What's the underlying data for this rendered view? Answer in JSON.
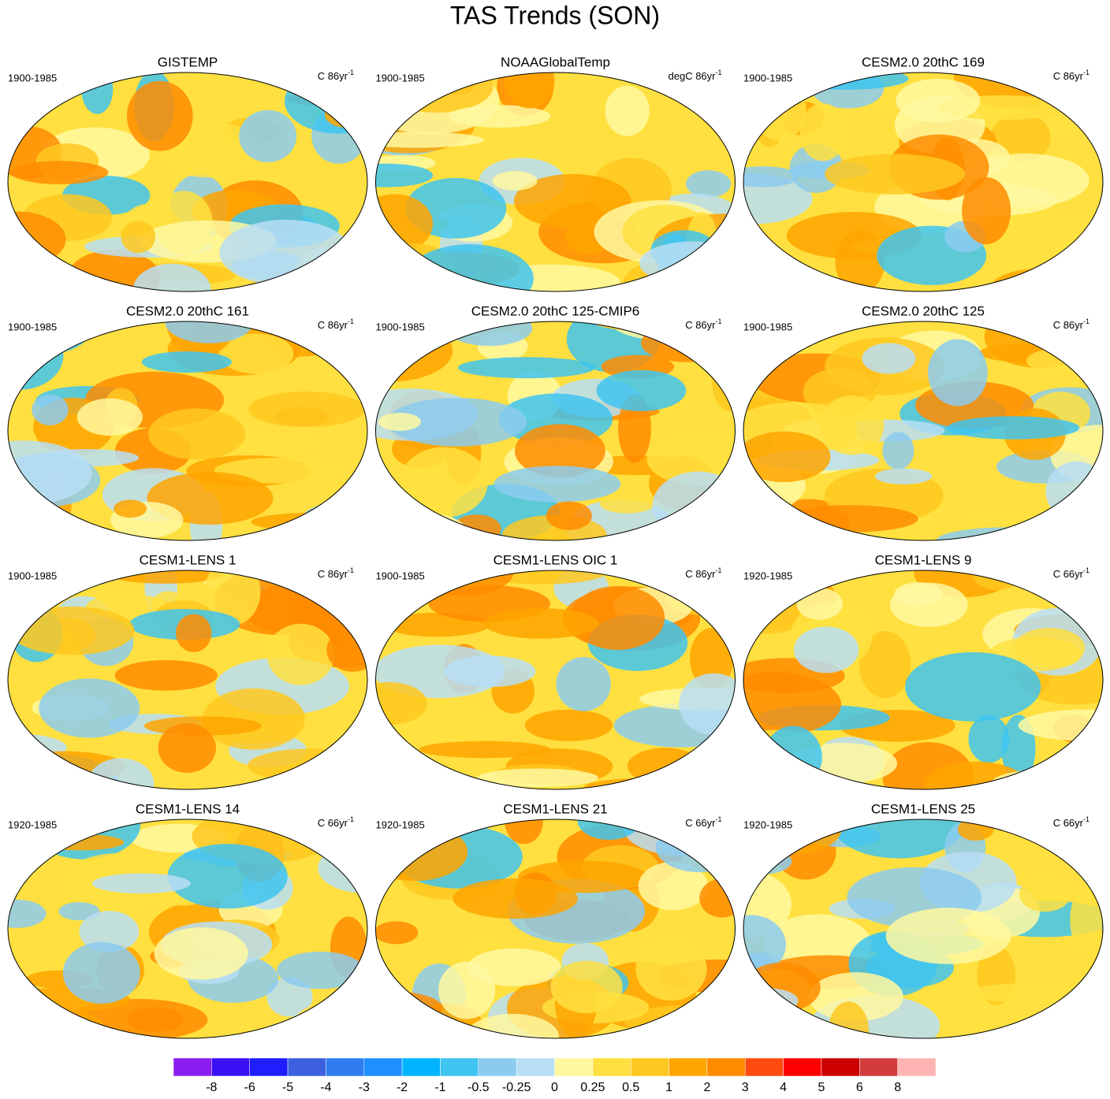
{
  "title": "TAS Trends (SON)",
  "panels": [
    {
      "title": "GISTEMP",
      "period": "1900-1985",
      "units": {
        "text": "C 86yr",
        "superscript": "-1"
      }
    },
    {
      "title": "NOAAGlobalTemp",
      "period": "1900-1985",
      "units": {
        "text": "degC 86yr",
        "superscript": "-1"
      }
    },
    {
      "title": "CESM2.0 20thC 169",
      "period": "1900-1985",
      "units": {
        "text": "C 86yr",
        "superscript": "-1"
      }
    },
    {
      "title": "CESM2.0 20thC 161",
      "period": "1900-1985",
      "units": {
        "text": "C 86yr",
        "superscript": "-1"
      }
    },
    {
      "title": "CESM2.0 20thC 125-CMIP6",
      "period": "1900-1985",
      "units": {
        "text": "C 86yr",
        "superscript": "-1"
      }
    },
    {
      "title": "CESM2.0 20thC 125",
      "period": "1900-1985",
      "units": {
        "text": "C 86yr",
        "superscript": "-1"
      }
    },
    {
      "title": "CESM1-LENS 1",
      "period": "1900-1985",
      "units": {
        "text": "C 86yr",
        "superscript": "-1"
      }
    },
    {
      "title": "CESM1-LENS OIC 1",
      "period": "1900-1985",
      "units": {
        "text": "C 86yr",
        "superscript": "-1"
      }
    },
    {
      "title": "CESM1-LENS 9",
      "period": "1920-1985",
      "units": {
        "text": "C 66yr",
        "superscript": "-1"
      }
    },
    {
      "title": "CESM1-LENS 14",
      "period": "1920-1985",
      "units": {
        "text": "C 66yr",
        "superscript": "-1"
      }
    },
    {
      "title": "CESM1-LENS 21",
      "period": "1920-1985",
      "units": {
        "text": "C 66yr",
        "superscript": "-1"
      }
    },
    {
      "title": "CESM1-LENS 25",
      "period": "1920-1985",
      "units": {
        "text": "C 66yr",
        "superscript": "-1"
      }
    }
  ],
  "colorbar": {
    "levels": [
      -8,
      -6,
      -5,
      -4,
      -3,
      -2,
      -1,
      -0.5,
      -0.25,
      0,
      0.25,
      0.5,
      1,
      2,
      3,
      4,
      5,
      6,
      8
    ],
    "colors": [
      "#8a1ef0",
      "#3a10f5",
      "#1e1eff",
      "#3c60e0",
      "#2e7cf0",
      "#1e90ff",
      "#00b4ff",
      "#40c4f0",
      "#8ccbee",
      "#b8def5",
      "#fff8a0",
      "#ffe040",
      "#ffc820",
      "#ffa500",
      "#ff8c00",
      "#ff4a10",
      "#ff0000",
      "#cc0000",
      "#d23c3c",
      "#ffb4b4"
    ]
  }
}
